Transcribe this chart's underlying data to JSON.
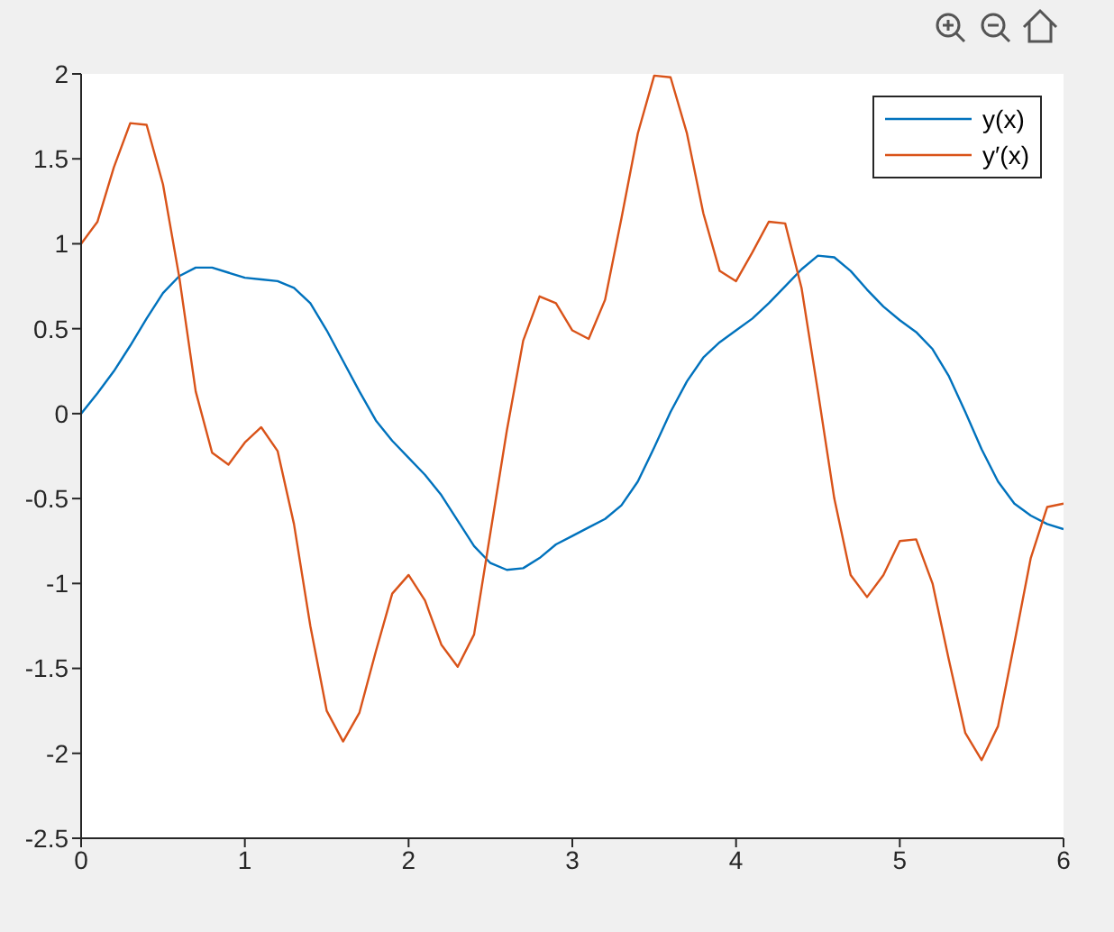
{
  "chart_data": {
    "type": "line",
    "x": [
      0,
      0.1,
      0.2,
      0.3,
      0.4,
      0.5,
      0.6,
      0.7,
      0.8,
      0.9,
      1,
      1.1,
      1.2,
      1.3,
      1.4,
      1.5,
      1.6,
      1.7,
      1.8,
      1.9,
      2,
      2.1,
      2.2,
      2.3,
      2.4,
      2.5,
      2.6,
      2.7,
      2.8,
      2.9,
      3,
      3.1,
      3.2,
      3.3,
      3.4,
      3.5,
      3.6,
      3.7,
      3.8,
      3.9,
      4,
      4.1,
      4.2,
      4.3,
      4.4,
      4.5,
      4.6,
      4.7,
      4.8,
      4.9,
      5,
      5.1,
      5.2,
      5.3,
      5.4,
      5.5,
      5.6,
      5.7,
      5.8,
      5.9,
      6
    ],
    "series": [
      {
        "name": "y(x)",
        "color": "#0072bd",
        "values": [
          0,
          0.12,
          0.25,
          0.4,
          0.56,
          0.71,
          0.81,
          0.86,
          0.86,
          0.83,
          0.8,
          0.79,
          0.78,
          0.74,
          0.65,
          0.49,
          0.31,
          0.13,
          -0.04,
          -0.16,
          -0.26,
          -0.36,
          -0.48,
          -0.63,
          -0.78,
          -0.88,
          -0.92,
          -0.91,
          -0.85,
          -0.77,
          -0.72,
          -0.67,
          -0.62,
          -0.54,
          -0.4,
          -0.2,
          0.01,
          0.19,
          0.33,
          0.42,
          0.49,
          0.56,
          0.65,
          0.75,
          0.85,
          0.93,
          0.92,
          0.84,
          0.73,
          0.63,
          0.55,
          0.48,
          0.38,
          0.22,
          0.01,
          -0.21,
          -0.4,
          -0.53,
          -0.6,
          -0.65,
          -0.68
        ]
      },
      {
        "name": "y′(x)",
        "color": "#d95319",
        "values": [
          1,
          1.13,
          1.45,
          1.71,
          1.7,
          1.35,
          0.8,
          0.13,
          -0.23,
          -0.3,
          -0.17,
          -0.08,
          -0.22,
          -0.65,
          -1.25,
          -1.75,
          -1.93,
          -1.76,
          -1.4,
          -1.06,
          -0.95,
          -1.1,
          -1.36,
          -1.49,
          -1.3,
          -0.7,
          -0.1,
          0.43,
          0.69,
          0.65,
          0.49,
          0.44,
          0.67,
          1.15,
          1.65,
          1.99,
          1.98,
          1.65,
          1.18,
          0.84,
          0.78,
          0.95,
          1.13,
          1.12,
          0.74,
          0.13,
          -0.5,
          -0.95,
          -1.08,
          -0.95,
          -0.75,
          -0.74,
          -1,
          -1.45,
          -1.88,
          -2.04,
          -1.84,
          -1.35,
          -0.85,
          -0.55,
          -0.53
        ]
      }
    ],
    "xlim": [
      0,
      6
    ],
    "xticks": [
      0,
      1,
      2,
      3,
      4,
      5,
      6
    ],
    "ylim": [
      -2.5,
      2
    ],
    "yticks": [
      -2.5,
      -2,
      -1.5,
      -1,
      -0.5,
      0,
      0.5,
      1,
      1.5,
      2
    ],
    "grid": false,
    "legend": "top right",
    "marker": "none",
    "line_style": "solid"
  }
}
